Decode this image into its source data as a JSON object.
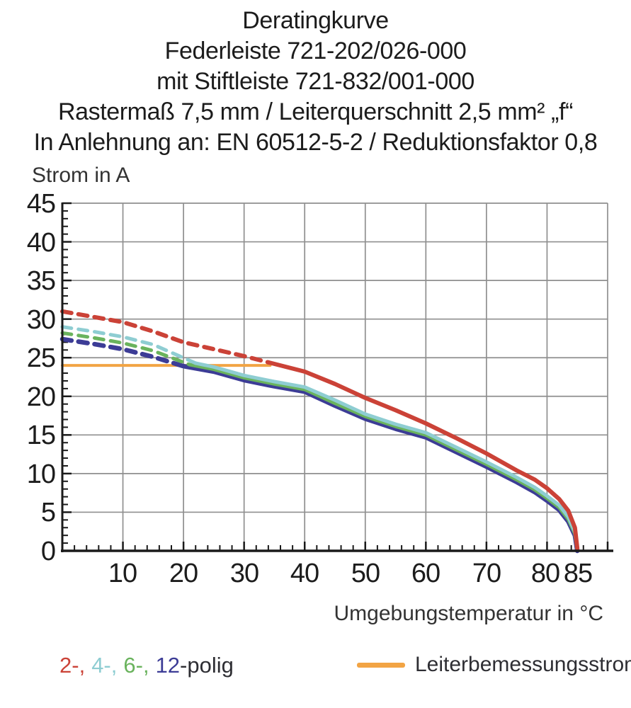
{
  "title": {
    "lines": [
      "Deratingkurve",
      "Federleiste 721-202/026-000",
      "mit Stiftleiste 721-832/001-000",
      "Rastermaß 7,5 mm / Leiterquerschnitt 2,5 mm² „f“",
      "In Anlehnung an: EN 60512-5-2 / Reduktionsfaktor 0,8"
    ]
  },
  "y_axis": {
    "label": "Strom in A",
    "tick_labels": [
      "45",
      "40",
      "35",
      "30",
      "25",
      "20",
      "15",
      "10",
      "5",
      "0"
    ]
  },
  "x_axis": {
    "label": "Umgebungstemperatur in °C",
    "tick_labels": [
      "10",
      "20",
      "30",
      "40",
      "50",
      "60",
      "70",
      "80",
      "85"
    ]
  },
  "legend": {
    "poles": [
      {
        "label": "2-,",
        "color": "#cb4237"
      },
      {
        "label": "4-,",
        "color": "#8ecdd2"
      },
      {
        "label": "6-,",
        "color": "#6ab35d"
      },
      {
        "label": "12",
        "color": "#3c3c96"
      }
    ],
    "poles_suffix": "-polig",
    "rated": {
      "label": "Leiterbemessungsstrom",
      "color": "#f2a444"
    }
  },
  "colors": {
    "grid": "#8f8f8f",
    "axis": "#1a1a1a",
    "red_2pole": "#cb4237",
    "cyan_4pole": "#8ecdd2",
    "green_6pole": "#6ab35d",
    "navy_12pole": "#3c3c96",
    "orange_rated": "#f2a444"
  },
  "chart_data": {
    "type": "line",
    "title": "Deratingkurve",
    "xlabel": "Umgebungstemperatur in °C",
    "ylabel": "Strom in A",
    "xlim": [
      0,
      90
    ],
    "ylim": [
      0,
      45
    ],
    "x_tick_step": 10,
    "y_tick_step": 5,
    "x_minor_step": 2,
    "y_minor_step": 1,
    "x_extra_tick": 85,
    "grid": true,
    "legend_position": "bottom",
    "series": [
      {
        "name": "Leiterbemessungsstrom",
        "color": "#f2a444",
        "width": 4,
        "solid": [
          [
            0,
            24
          ],
          [
            34.3,
            24
          ]
        ]
      },
      {
        "name": "12-polig",
        "color": "#3c3c96",
        "width": 6.5,
        "dashed": [
          [
            0,
            27.4
          ],
          [
            5,
            26.8
          ],
          [
            10,
            26.1
          ],
          [
            15,
            25.1
          ],
          [
            20,
            23.9
          ]
        ],
        "solid": [
          [
            20,
            23.9
          ],
          [
            25,
            23.2
          ],
          [
            30,
            22.1
          ],
          [
            35,
            21.3
          ],
          [
            40,
            20.6
          ],
          [
            45,
            18.8
          ],
          [
            50,
            17.1
          ],
          [
            55,
            15.8
          ],
          [
            60,
            14.7
          ],
          [
            65,
            12.8
          ],
          [
            70,
            10.9
          ],
          [
            75,
            8.9
          ],
          [
            78,
            7.6
          ],
          [
            80,
            6.5
          ],
          [
            82,
            5.3
          ],
          [
            83.5,
            3.8
          ],
          [
            84.6,
            2.0
          ],
          [
            85,
            0
          ]
        ]
      },
      {
        "name": "6-polig",
        "color": "#6ab35d",
        "width": 5,
        "dashed": [
          [
            0,
            28.2
          ],
          [
            5,
            27.6
          ],
          [
            10,
            26.9
          ],
          [
            15,
            25.9
          ],
          [
            21,
            24.1
          ]
        ],
        "solid": [
          [
            21,
            24.1
          ],
          [
            25,
            23.5
          ],
          [
            30,
            22.4
          ],
          [
            35,
            21.6
          ],
          [
            40,
            20.9
          ],
          [
            45,
            19.1
          ],
          [
            50,
            17.4
          ],
          [
            55,
            16.1
          ],
          [
            60,
            15.0
          ],
          [
            65,
            13.1
          ],
          [
            70,
            11.2
          ],
          [
            75,
            9.2
          ],
          [
            78,
            7.9
          ],
          [
            80,
            6.8
          ],
          [
            82,
            5.6
          ],
          [
            83.5,
            4.1
          ],
          [
            84.6,
            2.2
          ],
          [
            85,
            0.1
          ]
        ]
      },
      {
        "name": "4-polig",
        "color": "#8ecdd2",
        "width": 5,
        "dashed": [
          [
            0,
            29.0
          ],
          [
            5,
            28.4
          ],
          [
            10,
            27.7
          ],
          [
            15,
            26.7
          ],
          [
            22,
            24.3
          ]
        ],
        "solid": [
          [
            22,
            24.3
          ],
          [
            25,
            23.8
          ],
          [
            30,
            22.7
          ],
          [
            35,
            21.9
          ],
          [
            40,
            21.2
          ],
          [
            45,
            19.5
          ],
          [
            50,
            17.7
          ],
          [
            55,
            16.4
          ],
          [
            60,
            15.3
          ],
          [
            65,
            13.4
          ],
          [
            70,
            11.5
          ],
          [
            75,
            9.5
          ],
          [
            78,
            8.2
          ],
          [
            80,
            7.1
          ],
          [
            82,
            5.9
          ],
          [
            83.5,
            4.4
          ],
          [
            84.6,
            2.4
          ],
          [
            85,
            0.2
          ]
        ]
      },
      {
        "name": "2-polig",
        "color": "#cb4237",
        "width": 6,
        "dashed": [
          [
            0,
            31.0
          ],
          [
            5,
            30.3
          ],
          [
            10,
            29.6
          ],
          [
            15,
            28.4
          ],
          [
            20,
            27.0
          ],
          [
            25,
            26.1
          ],
          [
            30,
            25.2
          ],
          [
            34,
            24.4
          ]
        ],
        "solid": [
          [
            34,
            24.4
          ],
          [
            40,
            23.2
          ],
          [
            45,
            21.6
          ],
          [
            50,
            19.8
          ],
          [
            55,
            18.2
          ],
          [
            60,
            16.5
          ],
          [
            65,
            14.6
          ],
          [
            70,
            12.6
          ],
          [
            75,
            10.4
          ],
          [
            78,
            9.2
          ],
          [
            80,
            8.1
          ],
          [
            82,
            6.7
          ],
          [
            83.5,
            5.2
          ],
          [
            84.6,
            3.0
          ],
          [
            85,
            0.3
          ]
        ]
      }
    ]
  }
}
